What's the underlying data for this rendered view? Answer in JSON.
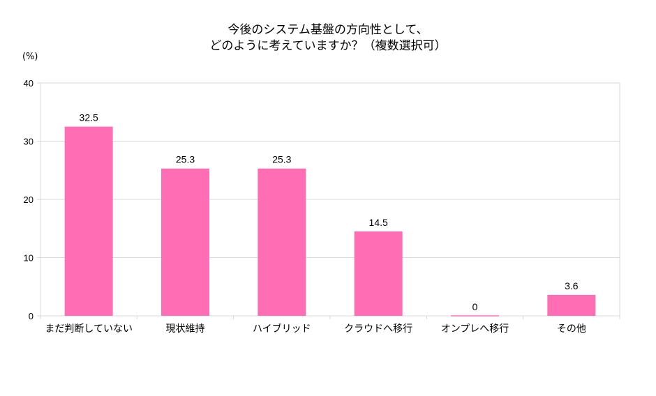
{
  "chart_data": {
    "type": "bar",
    "title_lines": [
      "今後のシステム基盤の方向性として、",
      "どのように考えていますか？（複数選択可）"
    ],
    "ylabel": "(%)",
    "xlabel": "",
    "categories": [
      "まだ判断していない",
      "現状維持",
      "ハイブリッド",
      "クラウドへ移行",
      "オンプレへ移行",
      "その他"
    ],
    "values": [
      32.5,
      25.3,
      25.3,
      14.5,
      0,
      3.6
    ],
    "value_labels": [
      "32.5",
      "25.3",
      "25.3",
      "14.5",
      "0",
      "3.6"
    ],
    "ylim": [
      0,
      40
    ],
    "yticks": [
      0,
      10,
      20,
      30,
      40
    ],
    "grid": true,
    "legend": "none",
    "bar_color": "#ff6eb4",
    "grid_color": "#d9d9d9"
  }
}
